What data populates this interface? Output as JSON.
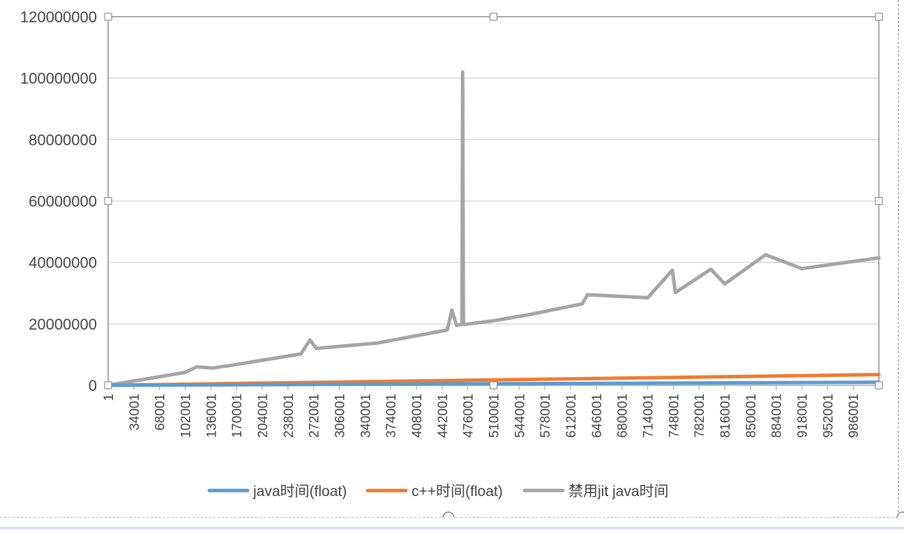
{
  "chart_data": {
    "type": "line",
    "title": "",
    "xlabel": "",
    "ylabel": "",
    "ylim": [
      0,
      120000000
    ],
    "yticks": [
      0,
      20000000,
      40000000,
      60000000,
      80000000,
      100000000,
      120000000
    ],
    "ytick_labels": [
      "0",
      "20000000",
      "40000000",
      "60000000",
      "80000000",
      "100000000",
      "120000000"
    ],
    "xlim": [
      1,
      1000000
    ],
    "xtick_labels": [
      "1",
      "34001",
      "68001",
      "102001",
      "136001",
      "170001",
      "204001",
      "238001",
      "272001",
      "306001",
      "340001",
      "374001",
      "408001",
      "442001",
      "476001",
      "510001",
      "544001",
      "578001",
      "612001",
      "646001",
      "680001",
      "714001",
      "748001",
      "782001",
      "816001",
      "850001",
      "884001",
      "918001",
      "952001",
      "986001"
    ],
    "grid": true,
    "legend_position": "bottom",
    "series": [
      {
        "name": "java时间(float)",
        "color": "#5b9bd5",
        "x": [
          1,
          200001,
          400001,
          600001,
          800001,
          1000000
        ],
        "y": [
          0,
          200000,
          400000,
          600000,
          800000,
          1000000
        ]
      },
      {
        "name": "c++时间(float)",
        "color": "#ed7d31",
        "x": [
          1,
          200001,
          400001,
          600001,
          800001,
          1000000
        ],
        "y": [
          0,
          700000,
          1400000,
          2100000,
          2800000,
          3500000
        ]
      },
      {
        "name": "禁用jit java时间",
        "color": "#a5a5a5",
        "x": [
          1,
          100001,
          115001,
          135001,
          160001,
          250001,
          262001,
          270001,
          350001,
          440001,
          446001,
          452001,
          459001,
          460001,
          461001,
          462001,
          500001,
          546001,
          615001,
          622001,
          700001,
          732001,
          736001,
          782001,
          800001,
          853001,
          900001,
          1000000
        ],
        "y": [
          0,
          4200000,
          6000000,
          5600000,
          6500000,
          10200000,
          14800000,
          12000000,
          13800000,
          18000000,
          24500000,
          19500000,
          19800000,
          102000000,
          20000000,
          19800000,
          21000000,
          23000000,
          26500000,
          29500000,
          28500000,
          37500000,
          30200000,
          37800000,
          33000000,
          42500000,
          38000000,
          41500000
        ]
      }
    ]
  }
}
